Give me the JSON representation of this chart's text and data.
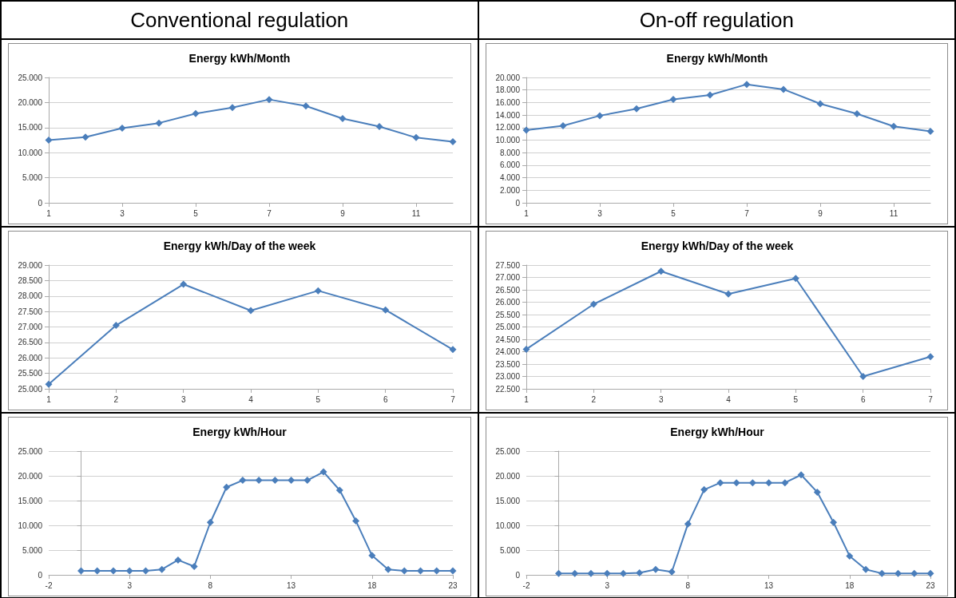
{
  "chart_data": [
    {
      "type": "line",
      "title": "Energy kWh/Month",
      "annotations": [
        "Conventional regulation"
      ],
      "marker": "diamond",
      "grid": "y",
      "x": [
        1,
        2,
        3,
        4,
        5,
        6,
        7,
        8,
        9,
        10,
        11,
        12
      ],
      "xlim": [
        1,
        12
      ],
      "xticks": [
        1,
        3,
        5,
        7,
        9,
        11
      ],
      "ylim": [
        0,
        25000
      ],
      "yticks": [
        {
          "value": 0,
          "label": "0"
        },
        {
          "value": 5000,
          "label": "5.000"
        },
        {
          "value": 10000,
          "label": "10.000"
        },
        {
          "value": 15000,
          "label": "15.000"
        },
        {
          "value": 20000,
          "label": "20.000"
        },
        {
          "value": 25000,
          "label": "25.000"
        }
      ],
      "series": [
        {
          "color": "#4a7ebb",
          "values": [
            12500,
            13100,
            14900,
            15900,
            17800,
            19000,
            20600,
            19300,
            16800,
            15200,
            13000,
            12200
          ]
        }
      ]
    },
    {
      "type": "line",
      "title": "Energy kWh/Month",
      "annotations": [
        "On-off regulation"
      ],
      "marker": "diamond",
      "grid": "y",
      "x": [
        1,
        2,
        3,
        4,
        5,
        6,
        7,
        8,
        9,
        10,
        11,
        12
      ],
      "xlim": [
        1,
        12
      ],
      "xticks": [
        1,
        3,
        5,
        7,
        9,
        11
      ],
      "ylim": [
        0,
        20000
      ],
      "yticks": [
        {
          "value": 0,
          "label": "0"
        },
        {
          "value": 2000,
          "label": "2.000"
        },
        {
          "value": 4000,
          "label": "4.000"
        },
        {
          "value": 6000,
          "label": "6.000"
        },
        {
          "value": 8000,
          "label": "8.000"
        },
        {
          "value": 10000,
          "label": "10.000"
        },
        {
          "value": 12000,
          "label": "12.000"
        },
        {
          "value": 14000,
          "label": "14.000"
        },
        {
          "value": 16000,
          "label": "16.000"
        },
        {
          "value": 18000,
          "label": "18.000"
        },
        {
          "value": 20000,
          "label": "20.000"
        }
      ],
      "series": [
        {
          "color": "#4a7ebb",
          "values": [
            11600,
            12300,
            13900,
            15000,
            16500,
            17200,
            18900,
            18100,
            15800,
            14200,
            12200,
            11400
          ]
        }
      ]
    },
    {
      "type": "line",
      "title": "Energy kWh/Day of the week",
      "marker": "diamond",
      "grid": "y",
      "x": [
        1,
        2,
        3,
        4,
        5,
        6,
        7
      ],
      "xlim": [
        1,
        7
      ],
      "xticks": [
        1,
        2,
        3,
        4,
        5,
        6,
        7
      ],
      "ylim": [
        25000,
        29000
      ],
      "yticks": [
        {
          "value": 25000,
          "label": "25.000"
        },
        {
          "value": 25500,
          "label": "25.500"
        },
        {
          "value": 26000,
          "label": "26.000"
        },
        {
          "value": 26500,
          "label": "26.500"
        },
        {
          "value": 27000,
          "label": "27.000"
        },
        {
          "value": 27500,
          "label": "27.500"
        },
        {
          "value": 28000,
          "label": "28.000"
        },
        {
          "value": 28500,
          "label": "28.500"
        },
        {
          "value": 29000,
          "label": "29.000"
        }
      ],
      "series": [
        {
          "color": "#4a7ebb",
          "values": [
            25150,
            27050,
            28380,
            27530,
            28170,
            27550,
            26270
          ]
        }
      ]
    },
    {
      "type": "line",
      "title": "Energy kWh/Day of the week",
      "marker": "diamond",
      "grid": "y",
      "x": [
        1,
        2,
        3,
        4,
        5,
        6,
        7
      ],
      "xlim": [
        1,
        7
      ],
      "xticks": [
        1,
        2,
        3,
        4,
        5,
        6,
        7
      ],
      "ylim": [
        22500,
        27500
      ],
      "yticks": [
        {
          "value": 22500,
          "label": "22.500"
        },
        {
          "value": 23000,
          "label": "23.000"
        },
        {
          "value": 23500,
          "label": "23.500"
        },
        {
          "value": 24000,
          "label": "24.000"
        },
        {
          "value": 24500,
          "label": "24.500"
        },
        {
          "value": 25000,
          "label": "25.000"
        },
        {
          "value": 25500,
          "label": "25.500"
        },
        {
          "value": 26000,
          "label": "26.000"
        },
        {
          "value": 26500,
          "label": "26.500"
        },
        {
          "value": 27000,
          "label": "27.000"
        },
        {
          "value": 27500,
          "label": "27.500"
        }
      ],
      "series": [
        {
          "color": "#4a7ebb",
          "values": [
            24100,
            25920,
            27250,
            26330,
            26960,
            23000,
            23800
          ]
        }
      ]
    },
    {
      "type": "line",
      "title": "Energy kWh/Hour",
      "marker": "diamond",
      "grid": "y",
      "x": [
        0,
        1,
        2,
        3,
        4,
        5,
        6,
        7,
        8,
        9,
        10,
        11,
        12,
        13,
        14,
        15,
        16,
        17,
        18,
        19,
        20,
        21,
        22,
        23
      ],
      "xlim": [
        -2,
        23
      ],
      "xticks": [
        -2,
        3,
        8,
        13,
        18,
        23
      ],
      "ylim": [
        0,
        25000
      ],
      "yticks": [
        {
          "value": 0,
          "label": "0"
        },
        {
          "value": 5000,
          "label": "5.000"
        },
        {
          "value": 10000,
          "label": "10.000"
        },
        {
          "value": 15000,
          "label": "15.000"
        },
        {
          "value": 20000,
          "label": "20.000"
        },
        {
          "value": 25000,
          "label": "25.000"
        }
      ],
      "series": [
        {
          "color": "#4a7ebb",
          "values": [
            800,
            800,
            800,
            800,
            800,
            1100,
            3000,
            1700,
            10600,
            17700,
            19100,
            19100,
            19100,
            19100,
            19100,
            20800,
            17100,
            10900,
            3900,
            1100,
            800,
            800,
            800,
            800
          ]
        }
      ]
    },
    {
      "type": "line",
      "title": "Energy kWh/Hour",
      "marker": "diamond",
      "grid": "y",
      "x": [
        0,
        1,
        2,
        3,
        4,
        5,
        6,
        7,
        8,
        9,
        10,
        11,
        12,
        13,
        14,
        15,
        16,
        17,
        18,
        19,
        20,
        21,
        22,
        23
      ],
      "xlim": [
        -2,
        23
      ],
      "xticks": [
        -2,
        3,
        8,
        13,
        18,
        23
      ],
      "ylim": [
        0,
        25000
      ],
      "yticks": [
        {
          "value": 0,
          "label": "0"
        },
        {
          "value": 5000,
          "label": "5.000"
        },
        {
          "value": 10000,
          "label": "10.000"
        },
        {
          "value": 15000,
          "label": "15.000"
        },
        {
          "value": 20000,
          "label": "20.000"
        },
        {
          "value": 25000,
          "label": "25.000"
        }
      ],
      "series": [
        {
          "color": "#4a7ebb",
          "values": [
            300,
            300,
            300,
            300,
            300,
            400,
            1100,
            600,
            10300,
            17200,
            18600,
            18600,
            18600,
            18600,
            18600,
            20200,
            16700,
            10600,
            3800,
            1100,
            300,
            300,
            300,
            300
          ]
        }
      ]
    }
  ]
}
